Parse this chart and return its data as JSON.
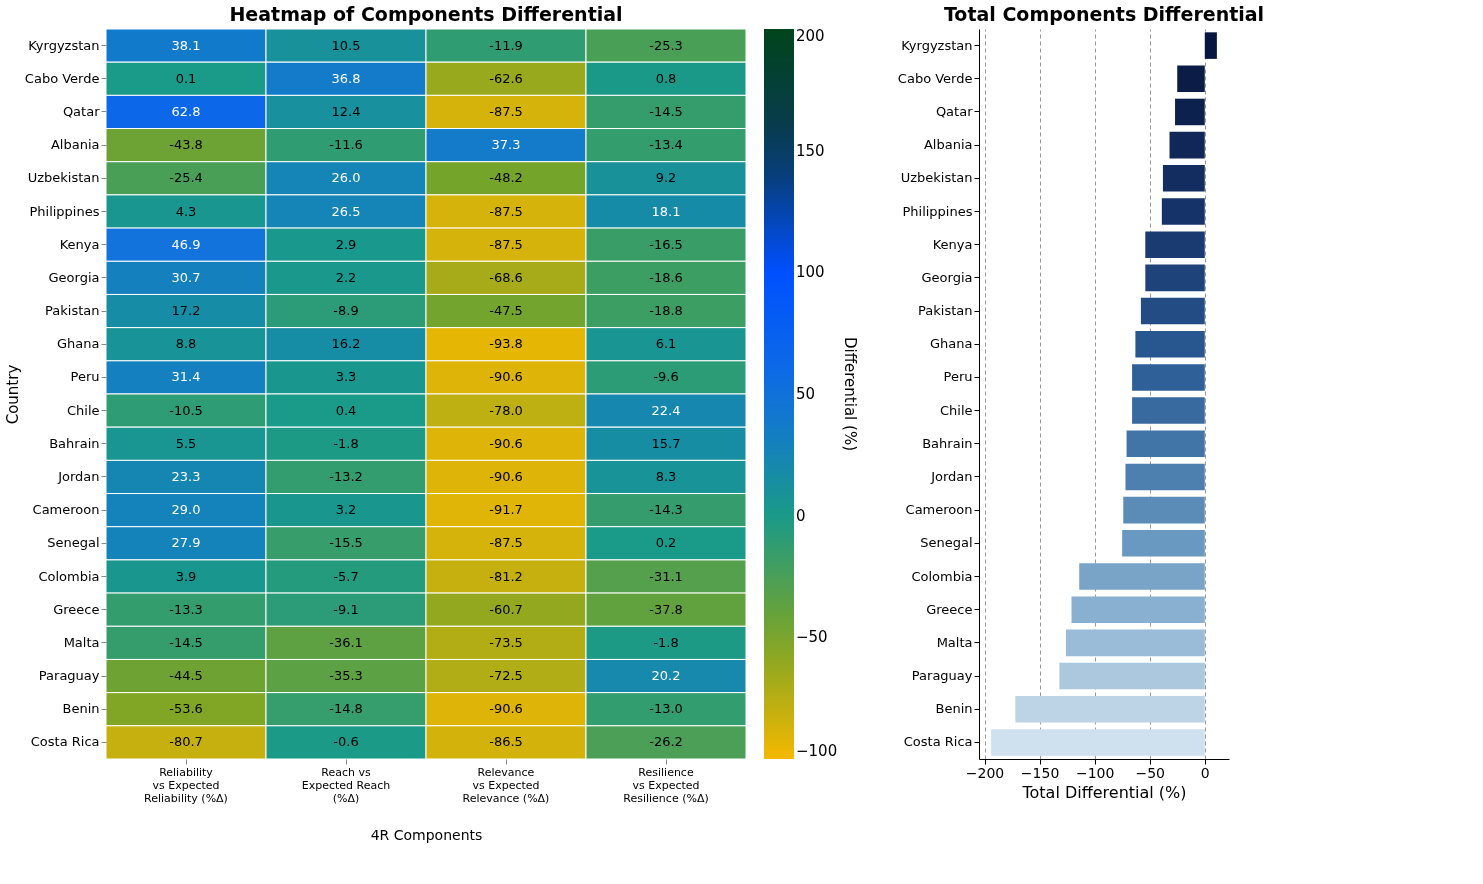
{
  "chart_data": [
    {
      "type": "heatmap",
      "title": "Heatmap of Components Differential",
      "xlabel": "4R Components",
      "ylabel": "Country",
      "clabel": "Differential (%)",
      "categories": [
        "Reliability\nvs Expected\nReliability (%Δ)",
        "Reach vs\nExpected Reach\n(%Δ)",
        "Relevance\nvs Expected\nRelevance (%Δ)",
        "Resilience\nvs Expected\nResilience (%Δ)"
      ],
      "y_categories": [
        "Kyrgyzstan",
        "Cabo Verde",
        "Qatar",
        "Albania",
        "Uzbekistan",
        "Philippines",
        "Kenya",
        "Georgia",
        "Pakistan",
        "Ghana",
        "Peru",
        "Chile",
        "Bahrain",
        "Jordan",
        "Cameroon",
        "Senegal",
        "Colombia",
        "Greece",
        "Malta",
        "Paraguay",
        "Benin",
        "Costa Rica"
      ],
      "cells": [
        [
          38.1,
          10.5,
          -11.9,
          -25.3
        ],
        [
          0.1,
          36.8,
          -62.6,
          0.8
        ],
        [
          62.8,
          12.4,
          -87.5,
          -14.5
        ],
        [
          -43.8,
          -11.6,
          37.3,
          -13.4
        ],
        [
          -25.4,
          26.0,
          -48.2,
          9.2
        ],
        [
          4.3,
          26.5,
          -87.5,
          18.1
        ],
        [
          46.9,
          2.9,
          -87.5,
          -16.5
        ],
        [
          30.7,
          2.2,
          -68.6,
          -18.6
        ],
        [
          17.2,
          -8.9,
          -47.5,
          -18.8
        ],
        [
          8.8,
          16.2,
          -93.8,
          6.1
        ],
        [
          31.4,
          3.3,
          -90.6,
          -9.6
        ],
        [
          -10.5,
          0.4,
          -78.0,
          22.4
        ],
        [
          5.5,
          -1.8,
          -90.6,
          15.7
        ],
        [
          23.3,
          -13.2,
          -90.6,
          8.3
        ],
        [
          29.0,
          3.2,
          -91.7,
          -14.3
        ],
        [
          27.9,
          -15.5,
          -87.5,
          0.2
        ],
        [
          3.9,
          -5.7,
          -81.2,
          -31.1
        ],
        [
          -13.3,
          -9.1,
          -60.7,
          -37.8
        ],
        [
          -14.5,
          -36.1,
          -73.5,
          -1.8
        ],
        [
          -44.5,
          -35.3,
          -72.5,
          20.2
        ],
        [
          -53.6,
          -14.8,
          -90.6,
          -13.0
        ],
        [
          -80.7,
          -0.6,
          -86.5,
          -26.2
        ]
      ],
      "cell_labels": [
        [
          "38.1",
          "10.5",
          "-11.9",
          "-25.3"
        ],
        [
          "0.1",
          "36.8",
          "-62.6",
          "0.8"
        ],
        [
          "62.8",
          "12.4",
          "-87.5",
          "-14.5"
        ],
        [
          "-43.8",
          "-11.6",
          "37.3",
          "-13.4"
        ],
        [
          "-25.4",
          "26.0",
          "-48.2",
          "9.2"
        ],
        [
          "4.3",
          "26.5",
          "-87.5",
          "18.1"
        ],
        [
          "46.9",
          "2.9",
          "-87.5",
          "-16.5"
        ],
        [
          "30.7",
          "2.2",
          "-68.6",
          "-18.6"
        ],
        [
          "17.2",
          "-8.9",
          "-47.5",
          "-18.8"
        ],
        [
          "8.8",
          "16.2",
          "-93.8",
          "6.1"
        ],
        [
          "31.4",
          "3.3",
          "-90.6",
          "-9.6"
        ],
        [
          "-10.5",
          "0.4",
          "-78.0",
          "22.4"
        ],
        [
          "5.5",
          "-1.8",
          "-90.6",
          "15.7"
        ],
        [
          "23.3",
          "-13.2",
          "-90.6",
          "8.3"
        ],
        [
          "29.0",
          "3.2",
          "-91.7",
          "-14.3"
        ],
        [
          "27.9",
          "-15.5",
          "-87.5",
          "0.2"
        ],
        [
          "3.9",
          "-5.7",
          "-81.2",
          "-31.1"
        ],
        [
          "-13.3",
          "-9.1",
          "-60.7",
          "-37.8"
        ],
        [
          "-14.5",
          "-36.1",
          "-73.5",
          "-1.8"
        ],
        [
          "-44.5",
          "-35.3",
          "-72.5",
          "20.2"
        ],
        [
          "-53.6",
          "-14.8",
          "-90.6",
          "-13.0"
        ],
        [
          "-80.7",
          "-0.6",
          "-86.5",
          "-26.2"
        ]
      ],
      "clim": [
        -100,
        200
      ],
      "cticks": [
        -100,
        -50,
        0,
        50,
        100,
        150,
        200
      ],
      "data_labels": true
    },
    {
      "type": "bar",
      "orientation": "horizontal",
      "title": "Total Components Differential",
      "xlabel": "Total Differential (%)",
      "categories": [
        "Kyrgyzstan",
        "Cabo Verde",
        "Qatar",
        "Albania",
        "Uzbekistan",
        "Philippines",
        "Kenya",
        "Georgia",
        "Pakistan",
        "Ghana",
        "Peru",
        "Chile",
        "Bahrain",
        "Jordan",
        "Cameroon",
        "Senegal",
        "Colombia",
        "Greece",
        "Malta",
        "Paraguay",
        "Benin",
        "Costa Rica"
      ],
      "values": [
        11,
        -25,
        -27,
        -32,
        -38,
        -39,
        -54,
        -54,
        -58,
        -63,
        -66,
        -66,
        -71,
        -72,
        -74,
        -75,
        -114,
        -121,
        -126,
        -132,
        -172,
        -194
      ],
      "colors": [
        "#07173f",
        "#0b1d47",
        "#0d214f",
        "#102757",
        "#132d60",
        "#163369",
        "#1a3b72",
        "#1e437b",
        "#234c85",
        "#28568e",
        "#2f6097",
        "#386a9f",
        "#4275a7",
        "#4e80af",
        "#5b8cb8",
        "#6998c0",
        "#79a4c8",
        "#89b0d0",
        "#9abcd8",
        "#abc8df",
        "#bdd4e7",
        "#cfe0ef"
      ],
      "xlim": [
        -205,
        22
      ],
      "xticks": [
        -200,
        -150,
        -100,
        -50,
        0
      ],
      "grid": "x"
    }
  ]
}
